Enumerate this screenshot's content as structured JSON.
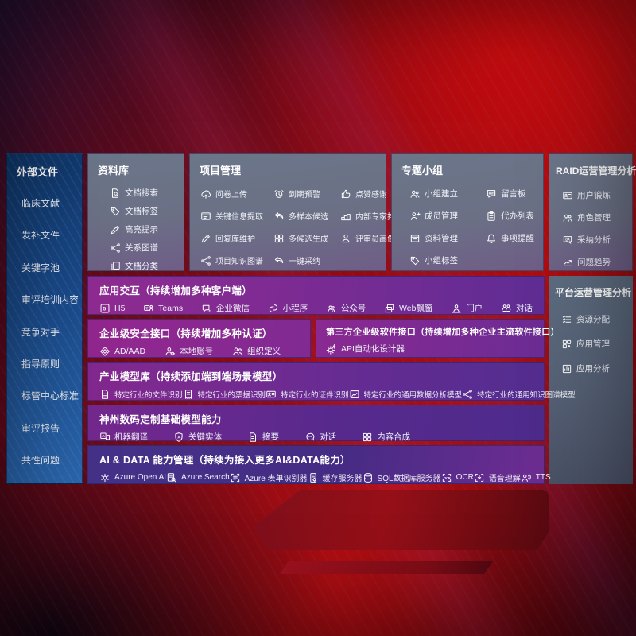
{
  "palette": {
    "brand_red": "#b00d12",
    "panel_blue": "#2a66ad",
    "box_slate": "#6b7689",
    "purple": "#7c2b93",
    "indigo": "#453289"
  },
  "left_panel": {
    "title": "外部文件",
    "items": [
      "临床文献",
      "发补文件",
      "关键字池",
      "审评培训内容",
      "竞争对手",
      "指导原则",
      "标管中心标准",
      "审评报告",
      "共性问题"
    ]
  },
  "repository": {
    "title": "资料库",
    "items": [
      {
        "label": "文档搜索",
        "icon": "doc-search"
      },
      {
        "label": "文档标签",
        "icon": "tag"
      },
      {
        "label": "高亮提示",
        "icon": "pen"
      },
      {
        "label": "关系图谱",
        "icon": "graph"
      },
      {
        "label": "文档分类",
        "icon": "copy"
      }
    ]
  },
  "project": {
    "title": "项目管理",
    "items": [
      {
        "label": "问卷上传",
        "icon": "cloud-up"
      },
      {
        "label": "到期预警",
        "icon": "alarm"
      },
      {
        "label": "点赞感谢",
        "icon": "thumb"
      },
      {
        "label": "关键信息提取",
        "icon": "window"
      },
      {
        "label": "多样本候选",
        "icon": "reply"
      },
      {
        "label": "内部专家排名",
        "icon": "podium"
      },
      {
        "label": "回复库维护",
        "icon": "pen"
      },
      {
        "label": "多候选生成",
        "icon": "grid4"
      },
      {
        "label": "评审员画像",
        "icon": "person"
      },
      {
        "label": "项目知识图谱",
        "icon": "graph"
      },
      {
        "label": "一键采纳",
        "icon": "reply"
      }
    ]
  },
  "groups": {
    "title": "专题小组",
    "items": [
      {
        "label": "小组建立",
        "icon": "people"
      },
      {
        "label": "留言板",
        "icon": "bbs"
      },
      {
        "label": "成员管理",
        "icon": "person-add"
      },
      {
        "label": "代办列表",
        "icon": "clipboard"
      },
      {
        "label": "资料管理",
        "icon": "box"
      },
      {
        "label": "事项提醒",
        "icon": "bell"
      },
      {
        "label": "小组标签",
        "icon": "tag"
      }
    ]
  },
  "raid": {
    "title": "RAID运营管理分析",
    "items": [
      {
        "label": "用户锻炼",
        "icon": "idcard"
      },
      {
        "label": "角色管理",
        "icon": "people"
      },
      {
        "label": "采纳分析",
        "icon": "speech-qa"
      },
      {
        "label": "问题趋势",
        "icon": "trend"
      }
    ]
  },
  "platform": {
    "title": "平台运营管理分析",
    "items": [
      {
        "label": "资源分配",
        "icon": "list-check"
      },
      {
        "label": "应用管理",
        "icon": "grid-dot"
      },
      {
        "label": "应用分析",
        "icon": "chart-app"
      }
    ]
  },
  "interaction": {
    "title": "应用交互（持续增加多种客户端）",
    "items": [
      {
        "label": "H5",
        "icon": "h5"
      },
      {
        "label": "Teams",
        "icon": "teams"
      },
      {
        "label": "企业微信",
        "icon": "wechat"
      },
      {
        "label": "小程序",
        "icon": "minip"
      },
      {
        "label": "公众号",
        "icon": "pubacc"
      },
      {
        "label": "Web飘窗",
        "icon": "web-popup"
      },
      {
        "label": "门户",
        "icon": "portal"
      },
      {
        "label": "对话",
        "icon": "chat2p"
      }
    ]
  },
  "security": {
    "title": "企业级安全接口（持续增加多种认证）",
    "items": [
      {
        "label": "AD/AAD",
        "icon": "diamond"
      },
      {
        "label": "本地账号",
        "icon": "person-gear"
      },
      {
        "label": "组织定义",
        "icon": "org"
      }
    ]
  },
  "thirdparty": {
    "title": "第三方企业级软件接口（持续增加多种企业主流软件接口）",
    "items": [
      {
        "label": "API自动化设计器",
        "icon": "api-gear"
      }
    ]
  },
  "industry": {
    "title": "产业模型库（持续添加端到端场景模型）",
    "items": [
      {
        "label": "特定行业的文件识别",
        "icon": "doc"
      },
      {
        "label": "特定行业的票据识别",
        "icon": "invoice"
      },
      {
        "label": "特定行业的证件识别",
        "icon": "idcard"
      },
      {
        "label": "特定行业的通用数据分析模型",
        "icon": "image-chart"
      },
      {
        "label": "特定行业的通用知识图谱模型",
        "icon": "graph"
      }
    ]
  },
  "basemodel": {
    "title": "神州数码定制基础模型能力",
    "items": [
      {
        "label": "机器翻译",
        "icon": "translate"
      },
      {
        "label": "关键实体",
        "icon": "shield-a"
      },
      {
        "label": "摘要",
        "icon": "summary"
      },
      {
        "label": "对话",
        "icon": "chat-round"
      },
      {
        "label": "内容合成",
        "icon": "grid4"
      }
    ]
  },
  "aidata": {
    "title": "AI & DATA 能力管理（持续为接入更多AI&DATA能力）",
    "items": [
      {
        "label": "Azure Open AI",
        "icon": "openai"
      },
      {
        "label": "Azure Search",
        "icon": "azure-search"
      },
      {
        "label": "Azure 表单识别器",
        "icon": "form"
      },
      {
        "label": "缓存服务器",
        "icon": "cache"
      },
      {
        "label": "SQL数据库服务器",
        "icon": "db"
      },
      {
        "label": "OCR",
        "icon": "ocr"
      },
      {
        "label": "语音理解",
        "icon": "voice"
      },
      {
        "label": "TTS",
        "icon": "tts"
      }
    ]
  }
}
